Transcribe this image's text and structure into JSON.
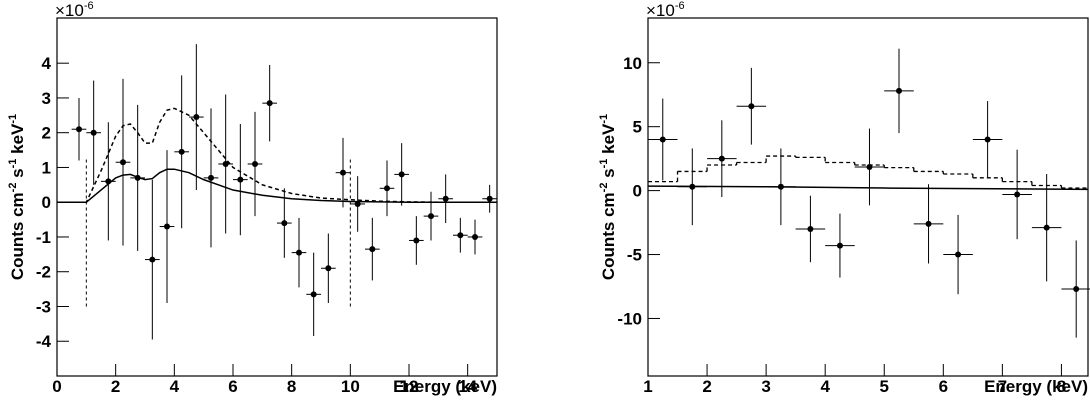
{
  "chart_data": [
    {
      "type": "errorbar",
      "xlabel": "Energy (keV)",
      "ylabel_parts": [
        "Counts cm",
        "-2",
        " s",
        "-1",
        " keV",
        "-1"
      ],
      "y_multiplier": [
        "×10",
        "-6"
      ],
      "xlim": [
        0,
        15
      ],
      "ylim": [
        -5,
        5.3
      ],
      "xticks": [
        0,
        2,
        4,
        6,
        8,
        10,
        12,
        14
      ],
      "yticks": [
        -4,
        -3,
        -2,
        -1,
        0,
        1,
        2,
        3,
        4
      ],
      "points": {
        "color": "#000000",
        "x": [
          0.75,
          1.25,
          1.75,
          2.25,
          2.75,
          3.25,
          3.75,
          4.25,
          4.75,
          5.25,
          5.75,
          6.25,
          6.75,
          7.25,
          7.75,
          8.25,
          8.75,
          9.25,
          9.75,
          10.25,
          10.75,
          11.25,
          11.75,
          12.25,
          12.75,
          13.25,
          13.75,
          14.25,
          14.75
        ],
        "values": [
          2.1,
          2.0,
          0.6,
          1.15,
          0.7,
          -1.65,
          -0.7,
          1.45,
          2.45,
          0.7,
          1.1,
          0.65,
          1.1,
          2.85,
          -0.6,
          -1.45,
          -2.65,
          -1.9,
          0.85,
          -0.05,
          -1.35,
          0.4,
          0.8,
          -1.1,
          -0.4,
          0.1,
          -0.95,
          -1.0,
          0.1
        ],
        "yerr": [
          0.9,
          1.5,
          1.7,
          2.4,
          2.1,
          2.3,
          2.2,
          2.2,
          2.1,
          2.0,
          2.0,
          1.6,
          1.5,
          1.1,
          1.0,
          1.0,
          1.2,
          1.0,
          1.0,
          0.8,
          0.9,
          0.8,
          0.9,
          0.7,
          0.7,
          0.7,
          0.5,
          0.5,
          0.4
        ],
        "xerr": [
          0.25,
          0.25,
          0.25,
          0.25,
          0.25,
          0.25,
          0.25,
          0.25,
          0.25,
          0.25,
          0.25,
          0.25,
          0.25,
          0.25,
          0.25,
          0.25,
          0.25,
          0.25,
          0.25,
          0.25,
          0.25,
          0.25,
          0.25,
          0.25,
          0.25,
          0.25,
          0.25,
          0.25,
          0.25
        ]
      },
      "lines": [
        {
          "style": "dashed",
          "color": "#000000",
          "x": [
            0,
            1,
            1.5,
            2,
            2.25,
            2.5,
            2.75,
            3,
            3.25,
            3.5,
            3.75,
            4,
            4.5,
            5,
            5.5,
            6,
            7,
            8,
            9,
            10,
            11,
            12,
            13,
            14,
            15
          ],
          "values": [
            0,
            0,
            0.9,
            1.9,
            2.2,
            2.25,
            2.0,
            1.7,
            1.7,
            2.3,
            2.65,
            2.7,
            2.5,
            2.0,
            1.5,
            1.0,
            0.5,
            0.25,
            0.12,
            0.07,
            0.03,
            0.01,
            0,
            0,
            0
          ]
        },
        {
          "style": "solid",
          "color": "#000000",
          "x": [
            0,
            1,
            1.5,
            2,
            2.25,
            2.5,
            2.75,
            3,
            3.25,
            3.5,
            3.75,
            4,
            4.5,
            5,
            5.5,
            6,
            7,
            8,
            9,
            10,
            11,
            12,
            13,
            14,
            15
          ],
          "values": [
            0,
            0,
            0.35,
            0.7,
            0.78,
            0.8,
            0.72,
            0.65,
            0.68,
            0.85,
            0.95,
            0.95,
            0.85,
            0.65,
            0.5,
            0.35,
            0.2,
            0.1,
            0.05,
            0.02,
            0.01,
            0,
            0,
            0,
            0
          ]
        }
      ],
      "markers": {
        "x": [
          1,
          10
        ],
        "ymin": -3,
        "ymax": 1.3
      }
    },
    {
      "type": "errorbar",
      "xlabel": "Energy (keV)",
      "ylabel_parts": [
        "Counts cm",
        "-2",
        " s",
        "-1",
        " keV",
        "-1"
      ],
      "y_multiplier": [
        "×10",
        "-6"
      ],
      "xlim": [
        1,
        8.45
      ],
      "ylim": [
        -14.5,
        13.5
      ],
      "xticks": [
        1,
        2,
        3,
        4,
        5,
        6,
        7,
        8
      ],
      "yticks": [
        -10,
        -5,
        0,
        5,
        10
      ],
      "points": {
        "color": "#000000",
        "x": [
          1.25,
          1.75,
          2.25,
          2.75,
          3.25,
          3.75,
          4.25,
          4.75,
          5.25,
          5.75,
          6.25,
          6.75,
          7.25,
          7.75,
          8.25
        ],
        "values": [
          4.0,
          0.3,
          2.5,
          6.6,
          0.3,
          -3.0,
          -4.3,
          1.85,
          7.8,
          -2.6,
          -5.0,
          4.0,
          -0.3,
          -2.9,
          -7.7
        ],
        "yerr": [
          3.2,
          3.0,
          3.0,
          3.0,
          3.0,
          2.6,
          2.5,
          3.0,
          3.3,
          3.1,
          3.1,
          3.0,
          3.5,
          4.2,
          3.8
        ],
        "xerr": [
          0.25,
          0.25,
          0.25,
          0.25,
          0.25,
          0.25,
          0.25,
          0.25,
          0.25,
          0.25,
          0.25,
          0.25,
          0.25,
          0.25,
          0.25
        ]
      },
      "steps": {
        "style": "dashed",
        "color": "#000000",
        "bins": [
          1,
          1.5,
          2,
          2.5,
          3,
          3.5,
          4,
          4.5,
          5,
          5.5,
          6,
          6.5,
          7,
          7.5,
          8,
          8.45
        ],
        "values": [
          0.7,
          1.5,
          2.0,
          2.2,
          2.7,
          2.6,
          2.2,
          2.0,
          1.8,
          1.5,
          1.3,
          1.0,
          0.7,
          0.4,
          0.2
        ]
      },
      "lines": [
        {
          "style": "solid",
          "color": "#000000",
          "x": [
            1,
            3,
            5,
            8.45
          ],
          "values": [
            0.35,
            0.3,
            0.2,
            0.1
          ]
        }
      ]
    }
  ]
}
